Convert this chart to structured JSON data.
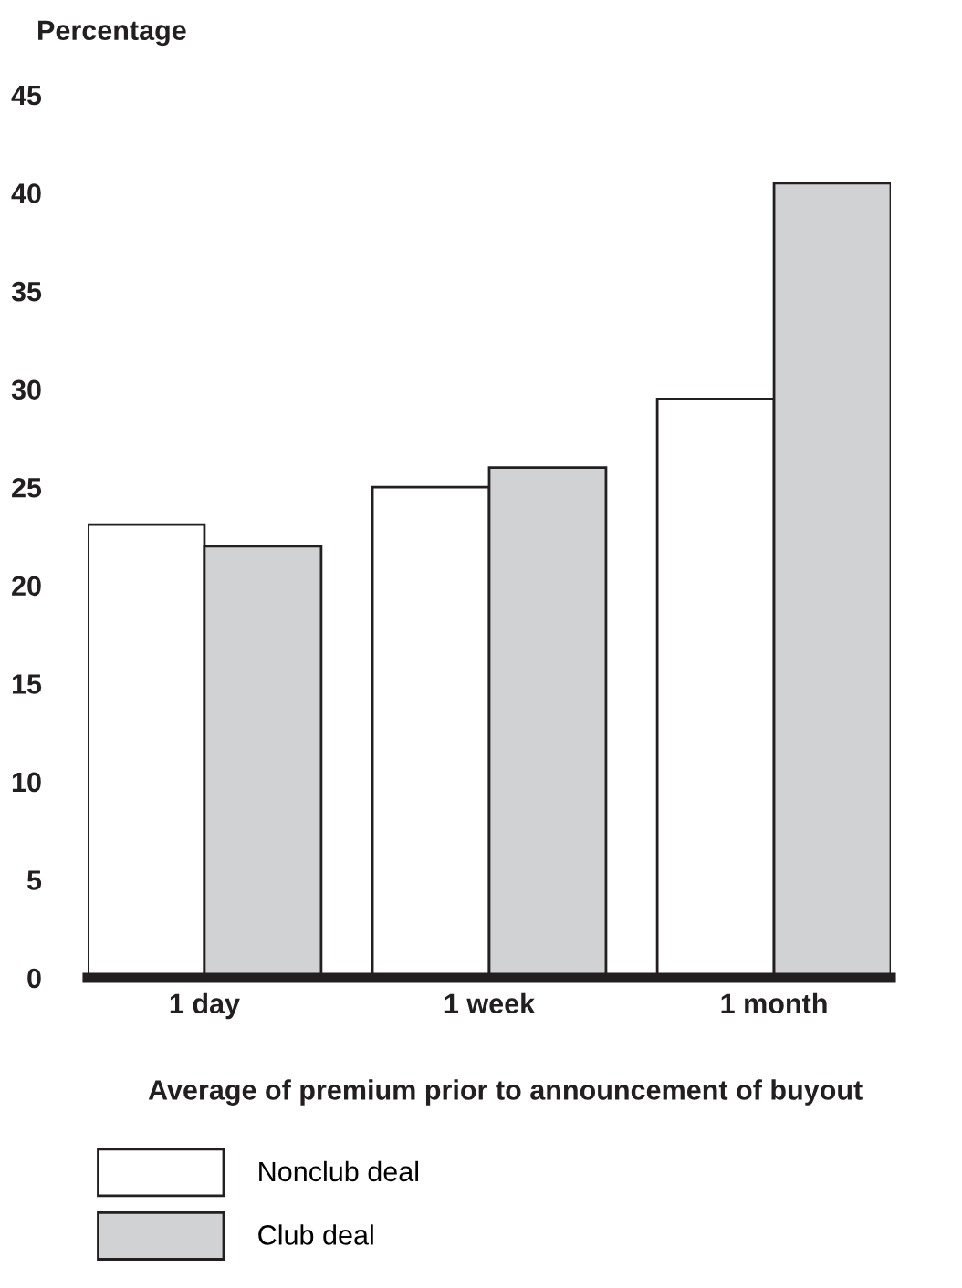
{
  "chart_data": {
    "type": "bar",
    "ylabel": "Percentage",
    "xlabel": "Average of premium prior to announcement of buyout",
    "categories": [
      "1 day",
      "1 week",
      "1 month"
    ],
    "series": [
      {
        "name": "Nonclub deal",
        "color": "#ffffff",
        "values": [
          23.1,
          25,
          29.5
        ]
      },
      {
        "name": "Club deal",
        "color": "#d1d2d4",
        "values": [
          22,
          26,
          40.5
        ]
      }
    ],
    "ylim": [
      0,
      45
    ],
    "yticks": [
      0,
      5,
      10,
      15,
      20,
      25,
      30,
      35,
      40,
      45
    ],
    "grid": false,
    "legend": "bottom left"
  }
}
